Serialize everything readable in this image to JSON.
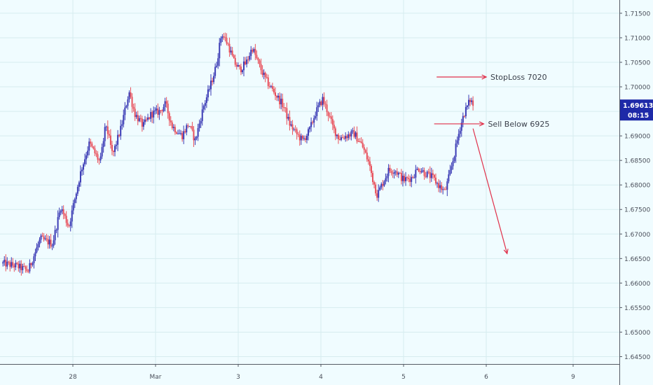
{
  "colors": {
    "background": "#f0fcff",
    "grid": "#d6ecef",
    "bull": "#3b3bb5",
    "bear": "#e8505b",
    "annotation": "#e0304a",
    "price_badge": "#1e2aa8",
    "axis": "#555a64"
  },
  "chart_data": {
    "type": "candlestick",
    "title": "",
    "xlabel": "",
    "ylabel": "",
    "ylim": [
      1.6435,
      1.7177
    ],
    "grid": true,
    "y_ticks": [
      1.645,
      1.65,
      1.655,
      1.66,
      1.665,
      1.67,
      1.675,
      1.68,
      1.685,
      1.69,
      1.695,
      1.7,
      1.705,
      1.71,
      1.715
    ],
    "y_tick_labels": [
      "1.64500",
      "1.65000",
      "1.65500",
      "1.66000",
      "1.66500",
      "1.67000",
      "1.67500",
      "1.68000",
      "1.68500",
      "1.69000",
      "1.69500",
      "1.70000",
      "1.70500",
      "1.71000",
      "1.71500"
    ],
    "x_ticks": [
      {
        "label": "28",
        "t": 1.0
      },
      {
        "label": "Mar",
        "t": 2.0
      },
      {
        "label": "3",
        "t": 3.0
      },
      {
        "label": "4",
        "t": 4.0
      },
      {
        "label": "5",
        "t": 5.0
      },
      {
        "label": "6",
        "t": 6.0
      },
      {
        "label": "9",
        "t": 7.0
      }
    ],
    "x_range": [
      0.14,
      7.59
    ],
    "path": [
      [
        0.14,
        1.664
      ],
      [
        0.3,
        1.6635
      ],
      [
        0.45,
        1.6625
      ],
      [
        0.6,
        1.669
      ],
      [
        0.75,
        1.668
      ],
      [
        0.85,
        1.6755
      ],
      [
        0.95,
        1.6715
      ],
      [
        1.1,
        1.683
      ],
      [
        1.2,
        1.6885
      ],
      [
        1.33,
        1.6845
      ],
      [
        1.4,
        1.6925
      ],
      [
        1.48,
        1.686
      ],
      [
        1.58,
        1.6915
      ],
      [
        1.68,
        1.699
      ],
      [
        1.75,
        1.6945
      ],
      [
        1.85,
        1.692
      ],
      [
        1.95,
        1.6945
      ],
      [
        2.05,
        1.695
      ],
      [
        2.12,
        1.6965
      ],
      [
        2.2,
        1.692
      ],
      [
        2.32,
        1.69
      ],
      [
        2.4,
        1.6925
      ],
      [
        2.48,
        1.689
      ],
      [
        2.58,
        1.696
      ],
      [
        2.65,
        1.6995
      ],
      [
        2.73,
        1.704
      ],
      [
        2.8,
        1.711
      ],
      [
        2.88,
        1.7085
      ],
      [
        2.95,
        1.705
      ],
      [
        3.02,
        1.7035
      ],
      [
        3.1,
        1.705
      ],
      [
        3.17,
        1.708
      ],
      [
        3.25,
        1.7045
      ],
      [
        3.33,
        1.7015
      ],
      [
        3.45,
        1.6985
      ],
      [
        3.55,
        1.696
      ],
      [
        3.62,
        1.6925
      ],
      [
        3.7,
        1.6905
      ],
      [
        3.78,
        1.689
      ],
      [
        3.86,
        1.691
      ],
      [
        3.93,
        1.6945
      ],
      [
        4.02,
        1.6975
      ],
      [
        4.08,
        1.695
      ],
      [
        4.15,
        1.6915
      ],
      [
        4.22,
        1.6895
      ],
      [
        4.3,
        1.69
      ],
      [
        4.4,
        1.6905
      ],
      [
        4.5,
        1.688
      ],
      [
        4.58,
        1.6845
      ],
      [
        4.63,
        1.681
      ],
      [
        4.68,
        1.678
      ],
      [
        4.75,
        1.6805
      ],
      [
        4.82,
        1.683
      ],
      [
        4.9,
        1.683
      ],
      [
        5.0,
        1.681
      ],
      [
        5.1,
        1.6815
      ],
      [
        5.18,
        1.6835
      ],
      [
        5.25,
        1.6825
      ],
      [
        5.35,
        1.6815
      ],
      [
        5.42,
        1.68
      ],
      [
        5.5,
        1.6785
      ],
      [
        5.57,
        1.683
      ],
      [
        5.63,
        1.6875
      ],
      [
        5.68,
        1.6915
      ],
      [
        5.73,
        1.6945
      ],
      [
        5.77,
        1.696
      ],
      [
        5.81,
        1.6975
      ],
      [
        5.84,
        1.6962
      ]
    ],
    "current_price": {
      "value": "1.69613",
      "price": 1.69613
    },
    "countdown": "08:15",
    "annotations": [
      {
        "kind": "level",
        "label": "StopLoss 7020",
        "price": 1.702,
        "t_start": 5.4,
        "t_end": 6.0
      },
      {
        "kind": "level",
        "label": "Sell Below 6925",
        "price": 1.69245,
        "t_start": 5.37,
        "t_end": 5.97
      },
      {
        "kind": "arrow",
        "label": "",
        "from_t": 5.84,
        "from_price": 1.6915,
        "to_t": 6.24,
        "to_price": 1.666
      }
    ]
  }
}
